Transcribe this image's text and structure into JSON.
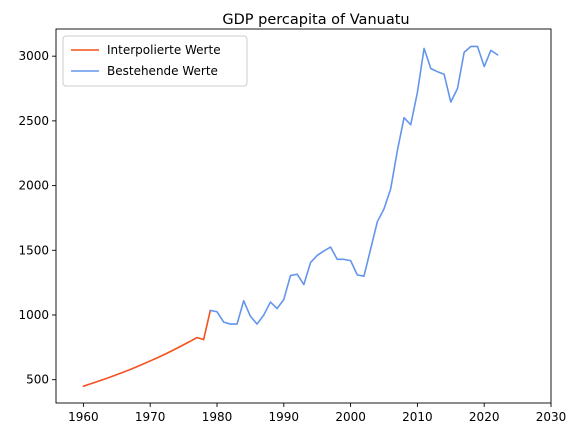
{
  "chart_data": {
    "type": "line",
    "title": "GDP percapita of Vanuatu",
    "xlabel": "",
    "ylabel": "",
    "xlim": [
      1955.9,
      2030
    ],
    "ylim": [
      320,
      3210
    ],
    "xticks": [
      1960,
      1970,
      1980,
      1990,
      2000,
      2010,
      2020,
      2030
    ],
    "yticks": [
      500,
      1000,
      1500,
      2000,
      2500,
      3000
    ],
    "grid": false,
    "legend_position": "top-left",
    "series": [
      {
        "name": "Interpolierte Werte",
        "color": "#f4511e",
        "x": [
          1960,
          1961,
          1962,
          1963,
          1964,
          1965,
          1966,
          1967,
          1968,
          1969,
          1970,
          1971,
          1972,
          1973,
          1974,
          1975,
          1976,
          1977,
          1978,
          1979
        ],
        "y": [
          450,
          467,
          484,
          502,
          520,
          539,
          559,
          579,
          600,
          622,
          645,
          668,
          692,
          717,
          743,
          770,
          797,
          826,
          810,
          1035
        ]
      },
      {
        "name": "Bestehende Werte",
        "color": "#6495ed",
        "x": [
          1979,
          1980,
          1981,
          1982,
          1983,
          1984,
          1985,
          1986,
          1987,
          1988,
          1989,
          1990,
          1991,
          1992,
          1993,
          1994,
          1995,
          1996,
          1997,
          1998,
          1999,
          2000,
          2001,
          2002,
          2003,
          2004,
          2005,
          2006,
          2007,
          2008,
          2009,
          2010,
          2011,
          2012,
          2013,
          2014,
          2015,
          2016,
          2017,
          2018,
          2019,
          2020,
          2021,
          2022
        ],
        "y": [
          1035,
          1025,
          945,
          930,
          930,
          1110,
          990,
          930,
          1000,
          1100,
          1050,
          1120,
          1305,
          1315,
          1235,
          1405,
          1460,
          1495,
          1525,
          1430,
          1430,
          1420,
          1310,
          1300,
          1510,
          1720,
          1820,
          1975,
          2270,
          2525,
          2470,
          2720,
          3060,
          2905,
          2880,
          2860,
          2645,
          2750,
          3030,
          3075,
          3075,
          2920,
          3045,
          3010
        ]
      }
    ]
  }
}
